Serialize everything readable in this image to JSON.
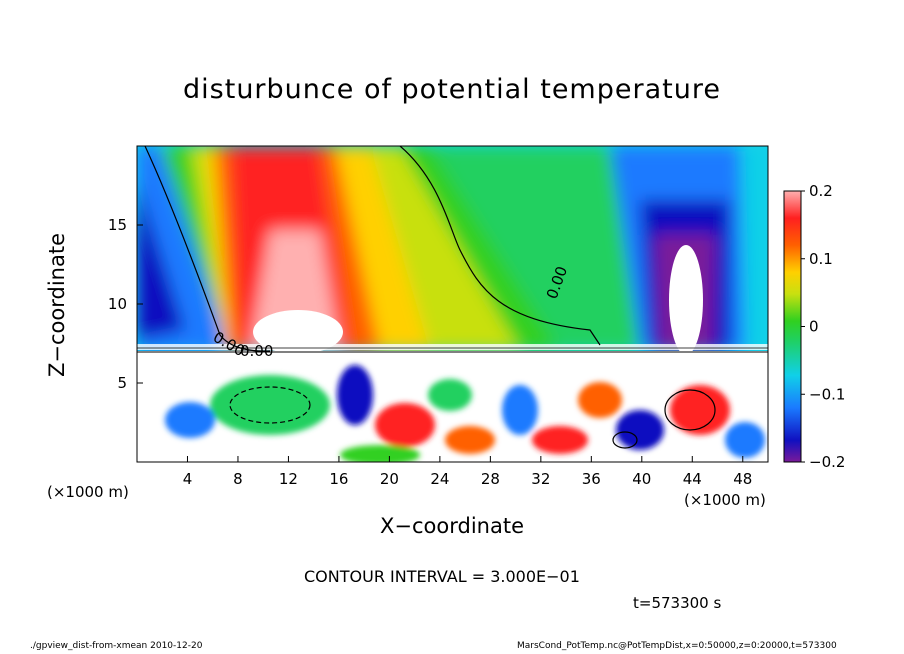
{
  "chart_data": {
    "type": "heatmap",
    "title": "disturbunce of potential temperature",
    "xlabel": "X−coordinate",
    "ylabel": "Z−coordinate",
    "x_unit_left": "(×1000 m)",
    "x_unit_right": "(×1000 m)",
    "xlim": [
      0,
      50
    ],
    "ylim": [
      0,
      20
    ],
    "x_ticks": [
      "4",
      "8",
      "12",
      "16",
      "20",
      "24",
      "28",
      "32",
      "36",
      "40",
      "44",
      "48"
    ],
    "x_tick_values": [
      4,
      8,
      12,
      16,
      20,
      24,
      28,
      32,
      36,
      40,
      44,
      48
    ],
    "y_ticks": [
      "5",
      "10",
      "15"
    ],
    "y_tick_values": [
      5,
      10,
      15
    ],
    "colorbar_range": [
      -0.2,
      0.2
    ],
    "colorbar_ticks": [
      "0.2",
      "0.1",
      "0",
      "−0.1",
      "−0.2"
    ],
    "colorbar_tick_values": [
      0.2,
      0.1,
      0,
      -0.1,
      -0.2
    ],
    "contour_labels": [
      "0.00",
      "0.00",
      "0.00"
    ],
    "contour_interval_text": "CONTOUR INTERVAL = 3.000E−01",
    "time_text": "t=573300 s",
    "grid": false
  },
  "footer": {
    "left": "./gpview_dist-from-xmean  2010-12-20",
    "right": "MarsCond_PotTemp.nc@PotTempDist,x=0:50000,z=0:20000,t=573300"
  }
}
